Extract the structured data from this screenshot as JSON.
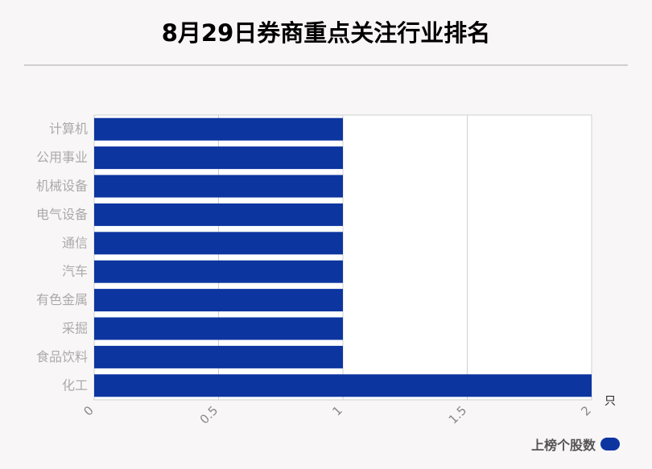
{
  "title": "8月29日券商重点关注行业排名",
  "unit": "只",
  "legend": {
    "label": "上榜个股数"
  },
  "colors": {
    "bar": "#0d35a0",
    "grid": "#d0d0d0",
    "tick": "#aaaaaa"
  },
  "chart_data": {
    "type": "bar",
    "orientation": "horizontal",
    "categories": [
      "计算机",
      "公用事业",
      "机械设备",
      "电气设备",
      "通信",
      "汽车",
      "有色金属",
      "采掘",
      "食品饮料",
      "化工"
    ],
    "series": [
      {
        "name": "上榜个股数",
        "values": [
          1,
          1,
          1,
          1,
          1,
          1,
          1,
          1,
          1,
          2
        ]
      }
    ],
    "xlim": [
      0,
      2
    ],
    "xticks": [
      "0",
      "0.5",
      "1",
      "1.5",
      "2"
    ],
    "xunit": "只",
    "grid": true,
    "legend_position": "bottom-right"
  }
}
